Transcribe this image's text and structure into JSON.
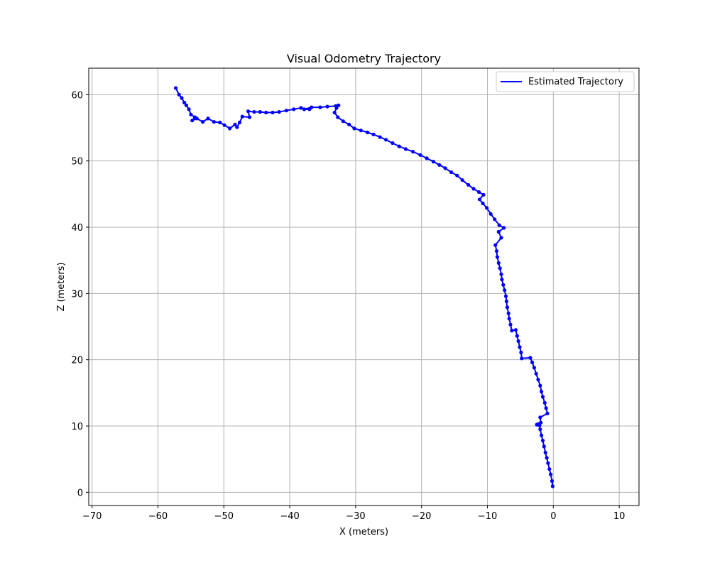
{
  "chart_data": {
    "type": "line",
    "title": "Visual Odometry Trajectory",
    "xlabel": "X (meters)",
    "ylabel": "Z (meters)",
    "xlim": [
      -70.5,
      13
    ],
    "ylim": [
      -2,
      64
    ],
    "xticks": [
      -70,
      -60,
      -50,
      -40,
      -30,
      -20,
      -10,
      0,
      10
    ],
    "yticks": [
      0,
      10,
      20,
      30,
      40,
      50,
      60
    ],
    "grid": true,
    "legend_position": "top-right",
    "colors": {
      "series": "#0000ff",
      "grid": "#b0b0b0",
      "axis": "#000000"
    },
    "series": [
      {
        "name": "Estimated Trajectory",
        "x": [
          -0.1,
          -0.2,
          -0.4,
          -0.6,
          -0.8,
          -1.0,
          -1.2,
          -1.4,
          -1.6,
          -1.8,
          -2.0,
          -2.1,
          -2.3,
          -2.5,
          -1.9,
          -2.0,
          -0.9,
          -1.1,
          -1.3,
          -1.6,
          -1.8,
          -2.0,
          -2.3,
          -2.6,
          -2.9,
          -3.2,
          -3.5,
          -4.8,
          -4.9,
          -5.1,
          -5.3,
          -5.5,
          -5.7,
          -6.3,
          -6.5,
          -6.7,
          -6.8,
          -7.0,
          -7.1,
          -7.2,
          -7.4,
          -7.6,
          -7.8,
          -7.9,
          -8.1,
          -8.3,
          -8.5,
          -8.6,
          -8.8,
          -7.9,
          -8.3,
          -7.5,
          -8.2,
          -8.9,
          -9.5,
          -10.1,
          -10.7,
          -11.2,
          -10.6,
          -11.3,
          -12.1,
          -12.9,
          -13.8,
          -14.6,
          -15.5,
          -16.4,
          -17.3,
          -18.2,
          -19.2,
          -20.2,
          -21.3,
          -22.4,
          -23.4,
          -24.4,
          -25.4,
          -26.3,
          -27.3,
          -28.2,
          -29.2,
          -30.2,
          -31.0,
          -31.9,
          -32.7,
          -33.2,
          -32.9,
          -32.6,
          -33.0,
          -34.3,
          -35.4,
          -36.7,
          -37.8,
          -37.0,
          -38.3,
          -39.4,
          -40.5,
          -41.6,
          -42.6,
          -43.6,
          -44.5,
          -45.4,
          -46.3,
          -46.1,
          -47.2,
          -47.6,
          -48.0,
          -48.3,
          -49.1,
          -49.9,
          -50.6,
          -51.5,
          -52.4,
          -53.2,
          -54.1,
          -54.8,
          -54.4,
          -55.0,
          -55.3,
          -55.7,
          -56.0,
          -56.4,
          -56.8,
          -57.3
        ],
        "y": [
          0.9,
          1.7,
          2.7,
          3.5,
          4.4,
          5.2,
          6.0,
          6.9,
          7.8,
          8.6,
          9.5,
          10.1,
          10.3,
          10.2,
          10.5,
          11.3,
          11.9,
          12.7,
          13.5,
          14.4,
          15.2,
          16.1,
          17.0,
          17.9,
          18.8,
          19.6,
          20.3,
          20.2,
          21.1,
          21.9,
          22.8,
          23.6,
          24.5,
          24.4,
          25.3,
          26.2,
          27.0,
          27.9,
          28.8,
          29.6,
          30.5,
          31.3,
          32.1,
          32.9,
          33.8,
          34.6,
          35.5,
          36.4,
          37.3,
          38.4,
          39.3,
          39.9,
          40.3,
          41.2,
          42.0,
          42.9,
          43.6,
          44.2,
          44.9,
          45.3,
          45.8,
          46.4,
          47.1,
          47.8,
          48.3,
          48.9,
          49.4,
          49.9,
          50.4,
          50.9,
          51.4,
          51.8,
          52.2,
          52.7,
          53.2,
          53.6,
          54.0,
          54.3,
          54.6,
          54.9,
          55.5,
          56.0,
          56.6,
          57.3,
          58.0,
          58.4,
          58.3,
          58.2,
          58.1,
          58.1,
          57.8,
          57.8,
          58.0,
          57.8,
          57.6,
          57.4,
          57.3,
          57.3,
          57.4,
          57.4,
          57.5,
          56.6,
          56.7,
          55.8,
          55.1,
          55.5,
          54.9,
          55.4,
          55.8,
          55.9,
          56.4,
          55.9,
          56.4,
          56.1,
          56.6,
          57.0,
          57.8,
          58.4,
          58.8,
          59.5,
          60.0,
          61.0
        ]
      }
    ]
  }
}
